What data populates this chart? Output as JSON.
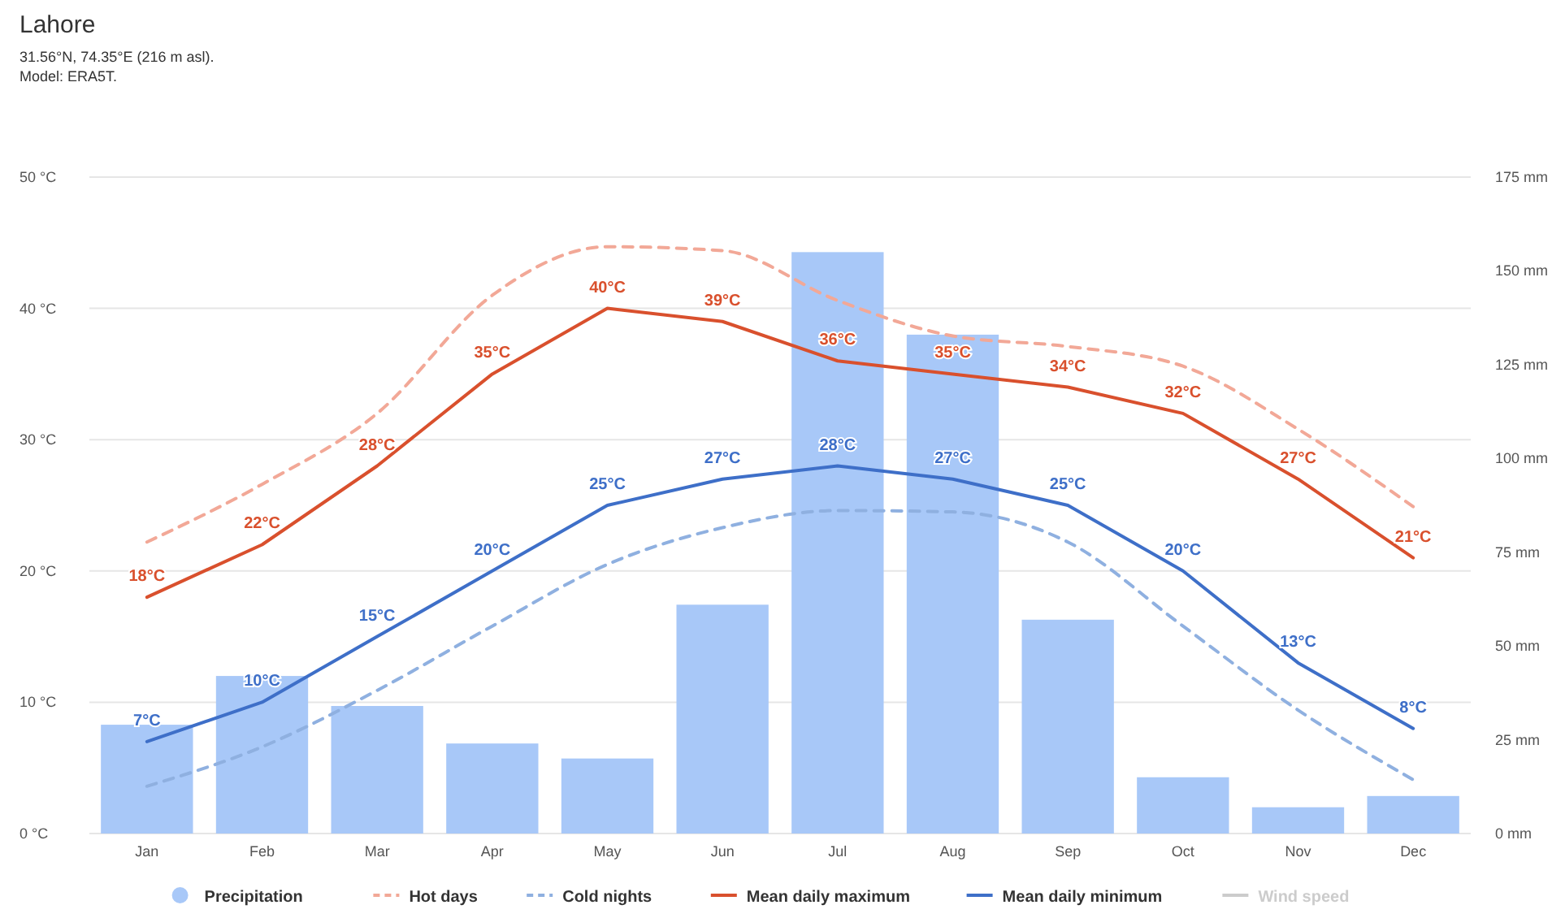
{
  "chart_data": {
    "type": "bar",
    "title": "Lahore",
    "subtitle": "31.56°N, 74.35°E (216 m asl).\nModel: ERA5T.",
    "categories": [
      "Jan",
      "Feb",
      "Mar",
      "Apr",
      "May",
      "Jun",
      "Jul",
      "Aug",
      "Sep",
      "Oct",
      "Nov",
      "Dec"
    ],
    "ylim": [
      0,
      50
    ],
    "yticks": [
      {
        "value": 0,
        "label": "0 °C"
      },
      {
        "value": 10,
        "label": "10 °C"
      },
      {
        "value": 20,
        "label": "20 °C"
      },
      {
        "value": 30,
        "label": "30 °C"
      },
      {
        "value": 40,
        "label": "40 °C"
      },
      {
        "value": 50,
        "label": "50 °C"
      }
    ],
    "y2lim": [
      0,
      175
    ],
    "y2ticks": [
      {
        "value": 0,
        "label": "0 mm"
      },
      {
        "value": 25,
        "label": "25 mm"
      },
      {
        "value": 50,
        "label": "50 mm"
      },
      {
        "value": 75,
        "label": "75 mm"
      },
      {
        "value": 100,
        "label": "100 mm"
      },
      {
        "value": 125,
        "label": "125 mm"
      },
      {
        "value": 150,
        "label": "150 mm"
      },
      {
        "value": 175,
        "label": "175 mm"
      }
    ],
    "grid": "y",
    "legend": "bottom",
    "series": [
      {
        "name": "Precipitation",
        "axis": "y2",
        "color": "#a8c8f8",
        "values": [
          29,
          42,
          34,
          24,
          20,
          61,
          155,
          133,
          57,
          15,
          7,
          10
        ]
      },
      {
        "name": "Hot days",
        "type": "line",
        "line_style": "dashed",
        "color": "#f2a897",
        "values": [
          22.2,
          26.6,
          32,
          41,
          44.7,
          44.4,
          40.6,
          37.9,
          37.1,
          35.6,
          30.8,
          24.9
        ]
      },
      {
        "name": "Cold nights",
        "type": "line",
        "line_style": "dashed",
        "color": "#8fb0e0",
        "values": [
          3.6,
          6.6,
          10.9,
          15.8,
          20.5,
          23.3,
          24.6,
          24.5,
          22.2,
          15.8,
          9.4,
          4.1
        ]
      },
      {
        "name": "Mean daily maximum",
        "type": "line",
        "line_style": "solid",
        "color": "#d9502d",
        "values": [
          18,
          22,
          28,
          35,
          40,
          39,
          36,
          35,
          34,
          32,
          27,
          21
        ],
        "value_labels": [
          "18°C",
          "22°C",
          "28°C",
          "35°C",
          "40°C",
          "39°C",
          "36°C",
          "35°C",
          "34°C",
          "32°C",
          "27°C",
          "21°C"
        ]
      },
      {
        "name": "Mean daily minimum",
        "type": "line",
        "line_style": "solid",
        "color": "#3e6fc8",
        "values": [
          7,
          10,
          15,
          20,
          25,
          27,
          28,
          27,
          25,
          20,
          13,
          8
        ],
        "value_labels": [
          "7°C",
          "10°C",
          "15°C",
          "20°C",
          "25°C",
          "27°C",
          "28°C",
          "27°C",
          "25°C",
          "20°C",
          "13°C",
          "8°C"
        ]
      },
      {
        "name": "Wind speed",
        "type": "line",
        "line_style": "solid",
        "color": "#cccccc",
        "values": [
          null,
          null,
          null,
          null,
          null,
          null,
          null,
          null,
          null,
          null,
          null,
          null
        ]
      }
    ]
  }
}
